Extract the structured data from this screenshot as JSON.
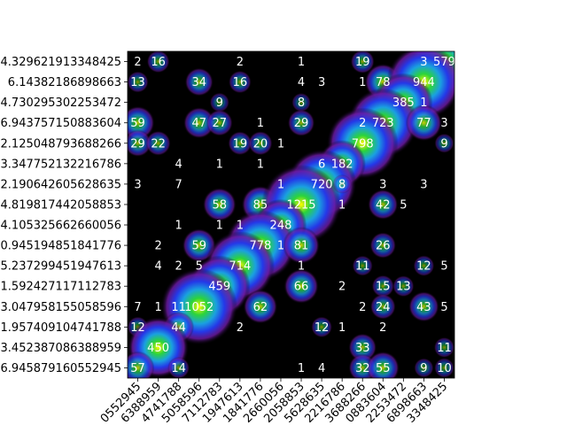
{
  "chart_data": {
    "type": "heatmap",
    "title": "",
    "xlabel": "",
    "ylabel": "",
    "colormap": "nipy_spectral",
    "rows": [
      "4.329621913348425",
      "6.14382186898663",
      "4.730295302253472",
      "6.943757150883604",
      "2.125048793688266",
      "3.347752132216786",
      "2.190642605628635",
      "4.819817442058853",
      "4.105325662660056",
      "0.945194851841776",
      "5.237299451947613",
      "1.592427117112783",
      "3.047958155058596",
      "1.957409104741788",
      "3.452387086388959",
      "6.945879160552945"
    ],
    "x_tick_labels": [
      "0552945",
      "6388959",
      "4741788",
      "5058596",
      "7112783",
      "1947613",
      "1841776",
      "2660056",
      "2058853",
      "5628635",
      "2216786",
      "3688266",
      "0883604",
      "2253472",
      "6898663",
      "3348425"
    ],
    "cells": [
      [
        0,
        0,
        "2"
      ],
      [
        0,
        1,
        "16"
      ],
      [
        0,
        5,
        "2"
      ],
      [
        0,
        8,
        "1"
      ],
      [
        0,
        11,
        "19"
      ],
      [
        0,
        14,
        "3"
      ],
      [
        0,
        15,
        "579"
      ],
      [
        1,
        0,
        "13"
      ],
      [
        1,
        3,
        "34"
      ],
      [
        1,
        5,
        "16"
      ],
      [
        1,
        8,
        "4"
      ],
      [
        1,
        9,
        "3"
      ],
      [
        1,
        11,
        "1"
      ],
      [
        1,
        12,
        "78"
      ],
      [
        1,
        14,
        "944"
      ],
      [
        2,
        4,
        "9"
      ],
      [
        2,
        8,
        "8"
      ],
      [
        2,
        13,
        "385"
      ],
      [
        2,
        14,
        "1"
      ],
      [
        3,
        0,
        "59"
      ],
      [
        3,
        3,
        "47"
      ],
      [
        3,
        4,
        "27"
      ],
      [
        3,
        6,
        "1"
      ],
      [
        3,
        8,
        "29"
      ],
      [
        3,
        11,
        "2"
      ],
      [
        3,
        12,
        "723"
      ],
      [
        3,
        14,
        "77"
      ],
      [
        3,
        15,
        "3"
      ],
      [
        4,
        0,
        "29"
      ],
      [
        4,
        1,
        "22"
      ],
      [
        4,
        5,
        "19"
      ],
      [
        4,
        6,
        "20"
      ],
      [
        4,
        7,
        "1"
      ],
      [
        4,
        11,
        "798"
      ],
      [
        4,
        15,
        "9"
      ],
      [
        5,
        2,
        "4"
      ],
      [
        5,
        4,
        "1"
      ],
      [
        5,
        6,
        "1"
      ],
      [
        5,
        9,
        "6"
      ],
      [
        5,
        10,
        "182"
      ],
      [
        6,
        0,
        "3"
      ],
      [
        6,
        2,
        "7"
      ],
      [
        6,
        7,
        "1"
      ],
      [
        6,
        9,
        "720"
      ],
      [
        6,
        10,
        "8"
      ],
      [
        6,
        12,
        "3"
      ],
      [
        6,
        14,
        "3"
      ],
      [
        7,
        4,
        "58"
      ],
      [
        7,
        6,
        "85"
      ],
      [
        7,
        8,
        "1215"
      ],
      [
        7,
        10,
        "1"
      ],
      [
        7,
        12,
        "42"
      ],
      [
        7,
        13,
        "5"
      ],
      [
        8,
        2,
        "1"
      ],
      [
        8,
        4,
        "1"
      ],
      [
        8,
        5,
        "1"
      ],
      [
        8,
        7,
        "248"
      ],
      [
        9,
        1,
        "2"
      ],
      [
        9,
        3,
        "59"
      ],
      [
        9,
        6,
        "778"
      ],
      [
        9,
        7,
        "1"
      ],
      [
        9,
        8,
        "81"
      ],
      [
        9,
        12,
        "26"
      ],
      [
        10,
        1,
        "4"
      ],
      [
        10,
        2,
        "2"
      ],
      [
        10,
        3,
        "5"
      ],
      [
        10,
        5,
        "714"
      ],
      [
        10,
        8,
        "1"
      ],
      [
        10,
        11,
        "11"
      ],
      [
        10,
        14,
        "12"
      ],
      [
        10,
        15,
        "5"
      ],
      [
        11,
        4,
        "459"
      ],
      [
        11,
        8,
        "66"
      ],
      [
        11,
        10,
        "2"
      ],
      [
        11,
        12,
        "15"
      ],
      [
        11,
        13,
        "13"
      ],
      [
        12,
        0,
        "7"
      ],
      [
        12,
        1,
        "1"
      ],
      [
        12,
        2,
        "11"
      ],
      [
        12,
        3,
        "1052"
      ],
      [
        12,
        6,
        "62"
      ],
      [
        12,
        11,
        "2"
      ],
      [
        12,
        12,
        "24"
      ],
      [
        12,
        14,
        "43"
      ],
      [
        12,
        15,
        "5"
      ],
      [
        13,
        0,
        "12"
      ],
      [
        13,
        2,
        "44"
      ],
      [
        13,
        5,
        "2"
      ],
      [
        13,
        9,
        "12"
      ],
      [
        13,
        10,
        "1"
      ],
      [
        13,
        12,
        "2"
      ],
      [
        14,
        1,
        "450"
      ],
      [
        14,
        11,
        "33"
      ],
      [
        14,
        15,
        "11"
      ],
      [
        15,
        0,
        "57"
      ],
      [
        15,
        2,
        "14"
      ],
      [
        15,
        8,
        "1"
      ],
      [
        15,
        9,
        "4"
      ],
      [
        15,
        11,
        "32"
      ],
      [
        15,
        12,
        "55"
      ],
      [
        15,
        14,
        "9"
      ],
      [
        15,
        15,
        "10"
      ]
    ]
  }
}
